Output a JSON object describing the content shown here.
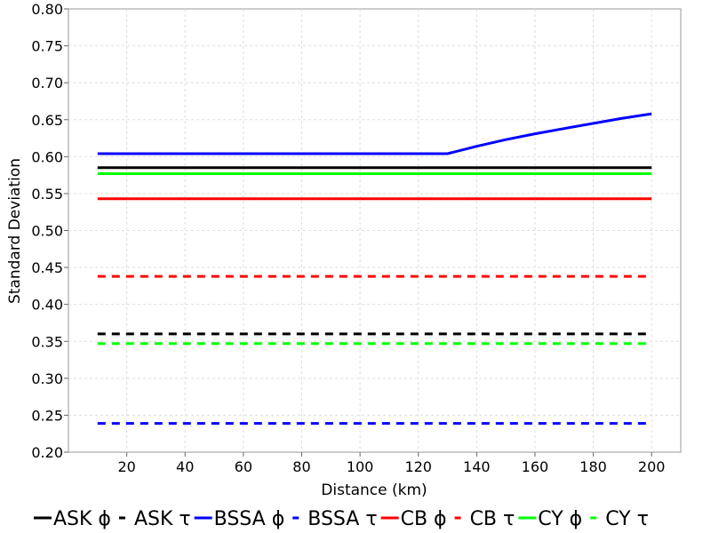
{
  "chart_data": {
    "type": "line",
    "title": "",
    "xlabel": "Distance (km)",
    "ylabel": "Standard Deviation",
    "xlim": [
      0,
      210
    ],
    "ylim": [
      0.2,
      0.8
    ],
    "xticks": [
      20,
      40,
      60,
      80,
      100,
      120,
      140,
      160,
      180,
      200
    ],
    "xtick_labels": [
      "20",
      "40",
      "60",
      "80",
      "100",
      "120",
      "140",
      "160",
      "180",
      "200"
    ],
    "yticks": [
      0.2,
      0.25,
      0.3,
      0.35,
      0.4,
      0.45,
      0.5,
      0.55,
      0.6,
      0.65,
      0.7,
      0.75,
      0.8
    ],
    "ytick_labels": [
      "0.20",
      "0.25",
      "0.30",
      "0.35",
      "0.40",
      "0.45",
      "0.50",
      "0.55",
      "0.60",
      "0.65",
      "0.70",
      "0.75",
      "0.80"
    ],
    "grid": true,
    "legend_position": "bottom",
    "series": [
      {
        "name": "ASK ϕ",
        "color": "#000000",
        "dash": false,
        "x": [
          10,
          200
        ],
        "y": [
          0.585,
          0.585
        ]
      },
      {
        "name": "ASK τ",
        "color": "#000000",
        "dash": true,
        "x": [
          10,
          200
        ],
        "y": [
          0.36,
          0.36
        ]
      },
      {
        "name": "BSSA ϕ",
        "color": "#0000ff",
        "dash": false,
        "x": [
          10,
          130,
          140,
          150,
          160,
          170,
          180,
          190,
          200
        ],
        "y": [
          0.604,
          0.604,
          0.614,
          0.623,
          0.631,
          0.638,
          0.645,
          0.652,
          0.658
        ]
      },
      {
        "name": "BSSA τ",
        "color": "#0000ff",
        "dash": true,
        "x": [
          10,
          200
        ],
        "y": [
          0.239,
          0.239
        ]
      },
      {
        "name": "CB ϕ",
        "color": "#ff0000",
        "dash": false,
        "x": [
          10,
          200
        ],
        "y": [
          0.543,
          0.543
        ]
      },
      {
        "name": "CB τ",
        "color": "#ff0000",
        "dash": true,
        "x": [
          10,
          200
        ],
        "y": [
          0.438,
          0.438
        ]
      },
      {
        "name": "CY ϕ",
        "color": "#00ff00",
        "dash": false,
        "x": [
          10,
          200
        ],
        "y": [
          0.577,
          0.577
        ]
      },
      {
        "name": "CY τ",
        "color": "#00ff00",
        "dash": true,
        "x": [
          10,
          200
        ],
        "y": [
          0.347,
          0.347
        ]
      }
    ]
  }
}
